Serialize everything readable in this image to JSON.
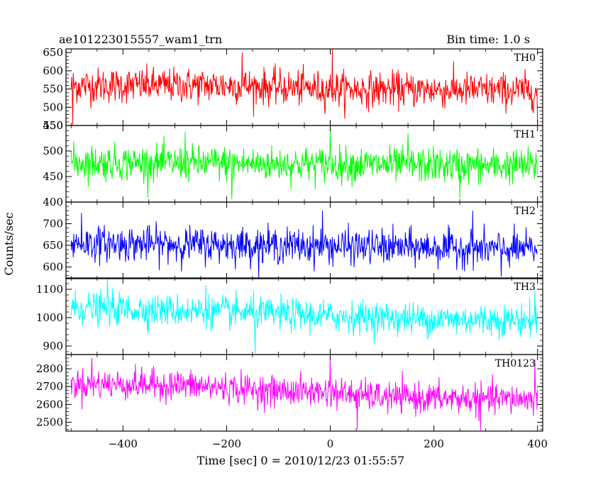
{
  "chart_data": {
    "type": "line",
    "title_left": "ae101223015557_wam1_trn",
    "title_right": "Bin time: 1.0 s",
    "xlabel": "Time [sec] 0 = 2010/12/23 01:55:57",
    "ylabel": "Counts/sec",
    "xlim": [
      -510,
      410
    ],
    "x_ticks": [
      -400,
      -200,
      0,
      200,
      400
    ],
    "x_data_range": [
      -500,
      400
    ],
    "panels": [
      {
        "name": "TH0",
        "color": "#ff0000",
        "ylim": [
          450,
          660
        ],
        "y_ticks": [
          450,
          500,
          550,
          600,
          650
        ],
        "mean": 555,
        "noise": 24,
        "trend": [
          {
            "x": -500,
            "y": 560
          },
          {
            "x": -200,
            "y": 560
          },
          {
            "x": 0,
            "y": 550
          },
          {
            "x": 200,
            "y": 548
          },
          {
            "x": 400,
            "y": 545
          }
        ],
        "spikes": [
          {
            "x": 4,
            "y": 660
          },
          {
            "x": -170,
            "y": 650
          },
          {
            "x": -497,
            "y": 452
          },
          {
            "x": 400,
            "y": 455
          }
        ]
      },
      {
        "name": "TH1",
        "color": "#00ff00",
        "ylim": [
          400,
          550
        ],
        "y_ticks": [
          400,
          450,
          500,
          550
        ],
        "mean": 474,
        "noise": 17,
        "trend": [
          {
            "x": -500,
            "y": 478
          },
          {
            "x": 0,
            "y": 474
          },
          {
            "x": 400,
            "y": 470
          }
        ],
        "spikes": [
          {
            "x": -280,
            "y": 538
          },
          {
            "x": 0,
            "y": 545
          },
          {
            "x": 150,
            "y": 535
          },
          {
            "x": -190,
            "y": 405
          },
          {
            "x": 250,
            "y": 408
          }
        ]
      },
      {
        "name": "TH2",
        "color": "#0000ff",
        "ylim": [
          573,
          750
        ],
        "y_ticks": [
          600,
          650,
          700
        ],
        "mean": 650,
        "noise": 20,
        "trend": [
          {
            "x": -500,
            "y": 655
          },
          {
            "x": -100,
            "y": 650
          },
          {
            "x": 400,
            "y": 640
          }
        ],
        "spikes": [
          {
            "x": -480,
            "y": 725
          },
          {
            "x": -15,
            "y": 730
          },
          {
            "x": 275,
            "y": 730
          },
          {
            "x": 330,
            "y": 578
          }
        ]
      },
      {
        "name": "TH3",
        "color": "#00ffff",
        "ylim": [
          870,
          1140
        ],
        "y_ticks": [
          900,
          1000,
          1100
        ],
        "mean": 1010,
        "noise": 28,
        "trend": [
          {
            "x": -500,
            "y": 1035
          },
          {
            "x": -200,
            "y": 1020
          },
          {
            "x": 0,
            "y": 1005
          },
          {
            "x": 200,
            "y": 995
          },
          {
            "x": 400,
            "y": 990
          }
        ],
        "spikes": [
          {
            "x": -430,
            "y": 1135
          },
          {
            "x": -145,
            "y": 875
          },
          {
            "x": -240,
            "y": 1115
          },
          {
            "x": 395,
            "y": 1095
          }
        ]
      },
      {
        "name": "TH0123",
        "color": "#ff00ff",
        "ylim": [
          2450,
          2880
        ],
        "y_ticks": [
          2500,
          2600,
          2700,
          2800
        ],
        "mean": 2670,
        "noise": 42,
        "trend": [
          {
            "x": -500,
            "y": 2715
          },
          {
            "x": -300,
            "y": 2710
          },
          {
            "x": -100,
            "y": 2675
          },
          {
            "x": 0,
            "y": 2670
          },
          {
            "x": 100,
            "y": 2640
          },
          {
            "x": 300,
            "y": 2630
          },
          {
            "x": 400,
            "y": 2630
          }
        ],
        "spikes": [
          {
            "x": 0,
            "y": 2870
          },
          {
            "x": -460,
            "y": 2862
          },
          {
            "x": 52,
            "y": 2460
          },
          {
            "x": 290,
            "y": 2455
          },
          {
            "x": 395,
            "y": 2850
          }
        ]
      }
    ]
  }
}
